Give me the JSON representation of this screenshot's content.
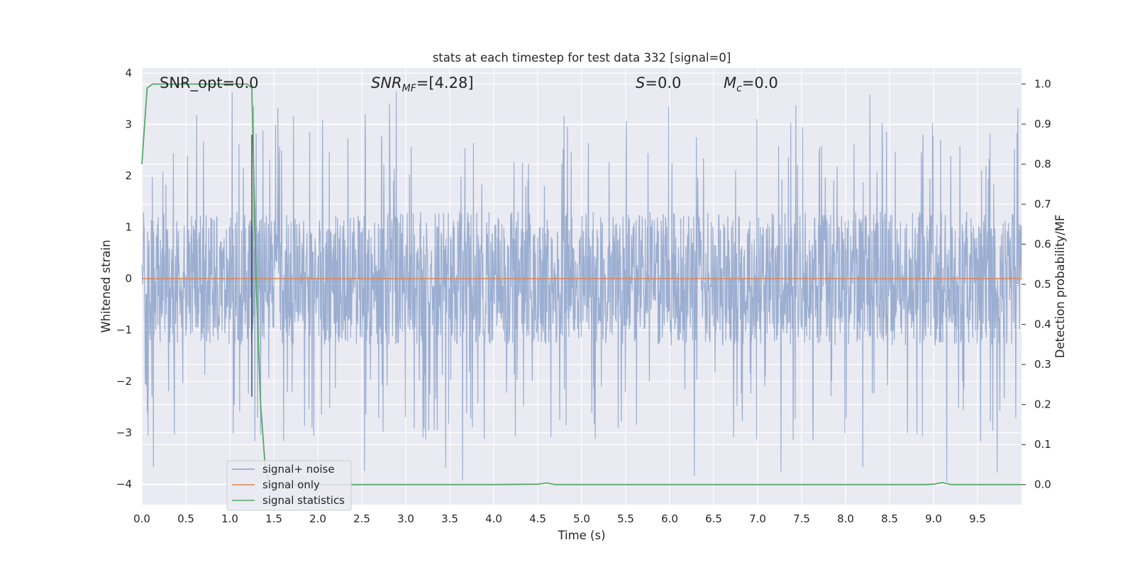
{
  "chart_data": {
    "type": "line",
    "title": "stats at each timestep for test data 332 [signal=0]",
    "xlabel": "Time (s)",
    "ylabel_left": "Whitened strain",
    "ylabel_right": "Detection probability/MF",
    "xlim": [
      0,
      10
    ],
    "ylim_left": [
      -4.4,
      4.1
    ],
    "ylim_right": [
      -0.05,
      1.04
    ],
    "x_ticks": [
      "0.0",
      "0.5",
      "1.0",
      "1.5",
      "2.0",
      "2.5",
      "3.0",
      "3.5",
      "4.0",
      "4.5",
      "5.0",
      "5.5",
      "6.0",
      "6.5",
      "7.0",
      "7.5",
      "8.0",
      "8.5",
      "9.0",
      "9.5"
    ],
    "y_ticks_left": [
      {
        "v": 4,
        "label": "4"
      },
      {
        "v": 3,
        "label": "3"
      },
      {
        "v": 2,
        "label": "2"
      },
      {
        "v": 1,
        "label": "1"
      },
      {
        "v": 0,
        "label": "0"
      },
      {
        "v": -1,
        "label": "−1"
      },
      {
        "v": -2,
        "label": "−2"
      },
      {
        "v": -3,
        "label": "−3"
      },
      {
        "v": -4,
        "label": "−4"
      }
    ],
    "y_ticks_right": [
      "1.0",
      "0.9",
      "0.8",
      "0.7",
      "0.6",
      "0.5",
      "0.4",
      "0.3",
      "0.2",
      "0.1",
      "0.0"
    ],
    "grid": true,
    "legend_placement": "lower-left",
    "annotations": {
      "snr_opt": "SNR_opt=0.0",
      "snr_mf_sym": "SNR",
      "snr_mf_sub": "MF",
      "snr_mf_val": "=[4.28]",
      "s_sym": "S",
      "s_val": "=0.0",
      "mc_sym": "M",
      "mc_sub": "c",
      "mc_val": "=0.0"
    },
    "marker_line_x": 1.25,
    "series": [
      {
        "name": "signal+ noise",
        "color": "#4c72b0",
        "axis": "left",
        "kind": "noise",
        "envelope": {
          "typical_abs": 1.3,
          "max": 3.7,
          "min": -4.0
        }
      },
      {
        "name": "signal only",
        "color": "#dd8452",
        "axis": "left",
        "x": [
          0,
          10
        ],
        "y": [
          0,
          0
        ]
      },
      {
        "name": "signal statistics",
        "color": "#55a868",
        "axis": "right",
        "x": [
          0.0,
          0.06,
          0.12,
          0.2,
          0.5,
          1.0,
          1.2,
          1.25,
          1.3,
          1.35,
          1.4,
          1.45,
          1.5,
          2.0,
          3.0,
          4.0,
          4.5,
          4.6,
          4.7,
          5.0,
          6.0,
          7.0,
          8.0,
          8.9,
          9.0,
          9.1,
          9.2,
          9.3,
          10.0
        ],
        "y": [
          0.8,
          0.99,
          1.0,
          1.0,
          1.0,
          1.0,
          1.0,
          0.99,
          0.5,
          0.2,
          0.05,
          0.0,
          0.0,
          0.0,
          0.0,
          0.0,
          0.001,
          0.004,
          0.0,
          0.0,
          0.0,
          0.0,
          0.0,
          0.0,
          0.001,
          0.005,
          0.0,
          0.0,
          0.0
        ]
      }
    ]
  }
}
